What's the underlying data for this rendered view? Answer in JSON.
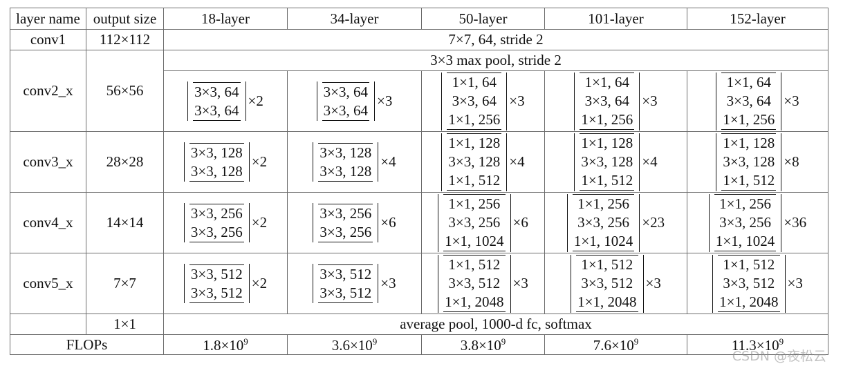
{
  "header": {
    "layer_name": "layer name",
    "output_size": "output size",
    "configs": [
      "18-layer",
      "34-layer",
      "50-layer",
      "101-layer",
      "152-layer"
    ]
  },
  "conv1": {
    "name": "conv1",
    "output": "112×112",
    "desc": "7×7, 64, stride 2"
  },
  "pool": {
    "desc": "3×3 max pool, stride 2"
  },
  "stages": [
    {
      "name": "conv2_x",
      "output": "56×56",
      "blocks": [
        {
          "lines": [
            "3×3, 64",
            "3×3, 64"
          ],
          "mult": "×2"
        },
        {
          "lines": [
            "3×3, 64",
            "3×3, 64"
          ],
          "mult": "×3"
        },
        {
          "lines": [
            "1×1, 64",
            "3×3, 64",
            "1×1, 256"
          ],
          "mult": "×3"
        },
        {
          "lines": [
            "1×1, 64",
            "3×3, 64",
            "1×1, 256"
          ],
          "mult": "×3"
        },
        {
          "lines": [
            "1×1, 64",
            "3×3, 64",
            "1×1, 256"
          ],
          "mult": "×3"
        }
      ]
    },
    {
      "name": "conv3_x",
      "output": "28×28",
      "blocks": [
        {
          "lines": [
            "3×3, 128",
            "3×3, 128"
          ],
          "mult": "×2"
        },
        {
          "lines": [
            "3×3, 128",
            "3×3, 128"
          ],
          "mult": "×4"
        },
        {
          "lines": [
            "1×1, 128",
            "3×3, 128",
            "1×1, 512"
          ],
          "mult": "×4"
        },
        {
          "lines": [
            "1×1, 128",
            "3×3, 128",
            "1×1, 512"
          ],
          "mult": "×4"
        },
        {
          "lines": [
            "1×1, 128",
            "3×3, 128",
            "1×1, 512"
          ],
          "mult": "×8"
        }
      ]
    },
    {
      "name": "conv4_x",
      "output": "14×14",
      "blocks": [
        {
          "lines": [
            "3×3, 256",
            "3×3, 256"
          ],
          "mult": "×2"
        },
        {
          "lines": [
            "3×3, 256",
            "3×3, 256"
          ],
          "mult": "×6"
        },
        {
          "lines": [
            "1×1, 256",
            "3×3, 256",
            "1×1, 1024"
          ],
          "mult": "×6"
        },
        {
          "lines": [
            "1×1, 256",
            "3×3, 256",
            "1×1, 1024"
          ],
          "mult": "×23"
        },
        {
          "lines": [
            "1×1, 256",
            "3×3, 256",
            "1×1, 1024"
          ],
          "mult": "×36"
        }
      ]
    },
    {
      "name": "conv5_x",
      "output": "7×7",
      "blocks": [
        {
          "lines": [
            "3×3, 512",
            "3×3, 512"
          ],
          "mult": "×2"
        },
        {
          "lines": [
            "3×3, 512",
            "3×3, 512"
          ],
          "mult": "×3"
        },
        {
          "lines": [
            "1×1, 512",
            "3×3, 512",
            "1×1, 2048"
          ],
          "mult": "×3"
        },
        {
          "lines": [
            "1×1, 512",
            "3×3, 512",
            "1×1, 2048"
          ],
          "mult": "×3"
        },
        {
          "lines": [
            "1×1, 512",
            "3×3, 512",
            "1×1, 2048"
          ],
          "mult": "×3"
        }
      ]
    }
  ],
  "final": {
    "output": "1×1",
    "desc": "average pool, 1000-d fc, softmax"
  },
  "flops": {
    "label": "FLOPs",
    "values": [
      {
        "mantissa": "1.8×10",
        "exp": "9"
      },
      {
        "mantissa": "3.6×10",
        "exp": "9"
      },
      {
        "mantissa": "3.8×10",
        "exp": "9"
      },
      {
        "mantissa": "7.6×10",
        "exp": "9"
      },
      {
        "mantissa": "11.3×10",
        "exp": "9"
      }
    ]
  },
  "watermark": "CSDN @夜松云"
}
